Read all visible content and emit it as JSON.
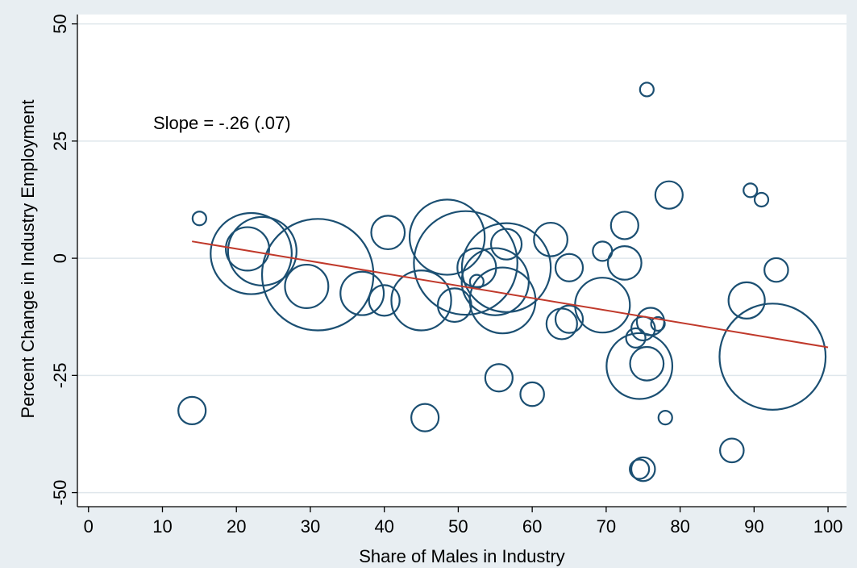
{
  "chart_data": {
    "type": "scatter",
    "xlabel": "Share of Males in Industry",
    "ylabel": "Percent Change in Industry Employment",
    "xlim": [
      -1.5,
      102.5
    ],
    "ylim": [
      -53,
      52
    ],
    "xticks": [
      0,
      10,
      20,
      30,
      40,
      50,
      60,
      70,
      80,
      90,
      100
    ],
    "yticks": [
      50,
      25,
      0,
      -25,
      -50
    ],
    "annotation": "Slope = -.26 (.07)",
    "grid": true,
    "marker_color": "#1b4f72",
    "fit_line_color": "#c0392b",
    "fit_line": {
      "x": [
        14,
        100
      ],
      "y": [
        3.6,
        -19.0
      ]
    },
    "points": [
      {
        "x": 15,
        "y": 8.5,
        "size": 1
      },
      {
        "x": 22,
        "y": 1,
        "size": 35
      },
      {
        "x": 21.5,
        "y": 2,
        "size": 10
      },
      {
        "x": 23.5,
        "y": 1.5,
        "size": 25
      },
      {
        "x": 31,
        "y": -3.5,
        "size": 66
      },
      {
        "x": 29.5,
        "y": -6,
        "size": 10
      },
      {
        "x": 37,
        "y": -7.5,
        "size": 10
      },
      {
        "x": 40.5,
        "y": 5.5,
        "size": 6
      },
      {
        "x": 40,
        "y": -9,
        "size": 5
      },
      {
        "x": 45,
        "y": -9,
        "size": 19
      },
      {
        "x": 48.5,
        "y": 4.5,
        "size": 30
      },
      {
        "x": 51,
        "y": -1,
        "size": 57
      },
      {
        "x": 49.5,
        "y": -10,
        "size": 6
      },
      {
        "x": 52.5,
        "y": -2,
        "size": 8
      },
      {
        "x": 52.5,
        "y": -5,
        "size": 1
      },
      {
        "x": 55,
        "y": -5,
        "size": 24
      },
      {
        "x": 56.5,
        "y": -2,
        "size": 42
      },
      {
        "x": 56.5,
        "y": 3,
        "size": 5
      },
      {
        "x": 56,
        "y": -9,
        "size": 23
      },
      {
        "x": 62.5,
        "y": 4,
        "size": 6
      },
      {
        "x": 65,
        "y": -2,
        "size": 4
      },
      {
        "x": 64,
        "y": -14,
        "size": 5
      },
      {
        "x": 65,
        "y": -13,
        "size": 4
      },
      {
        "x": 69.5,
        "y": 1.5,
        "size": 2
      },
      {
        "x": 69.5,
        "y": -10,
        "size": 16
      },
      {
        "x": 72.5,
        "y": 7,
        "size": 4
      },
      {
        "x": 72.5,
        "y": -1,
        "size": 6
      },
      {
        "x": 74,
        "y": -17,
        "size": 2
      },
      {
        "x": 74.5,
        "y": -23,
        "size": 23
      },
      {
        "x": 75.5,
        "y": -22.5,
        "size": 6
      },
      {
        "x": 75,
        "y": -15,
        "size": 3
      },
      {
        "x": 76,
        "y": -13.5,
        "size": 4
      },
      {
        "x": 77,
        "y": -14,
        "size": 1
      },
      {
        "x": 75.5,
        "y": 36,
        "size": 1
      },
      {
        "x": 78.5,
        "y": 13.5,
        "size": 4
      },
      {
        "x": 78,
        "y": -34,
        "size": 1
      },
      {
        "x": 89.5,
        "y": 14.5,
        "size": 1
      },
      {
        "x": 91,
        "y": 12.5,
        "size": 1
      },
      {
        "x": 89,
        "y": -9,
        "size": 7
      },
      {
        "x": 93,
        "y": -2.5,
        "size": 3
      },
      {
        "x": 92.5,
        "y": -21,
        "size": 60
      },
      {
        "x": 87,
        "y": -41,
        "size": 3
      },
      {
        "x": 75,
        "y": -45,
        "size": 3
      },
      {
        "x": 74.5,
        "y": -45,
        "size": 2
      },
      {
        "x": 55.5,
        "y": -25.5,
        "size": 4
      },
      {
        "x": 60,
        "y": -29,
        "size": 3
      },
      {
        "x": 45.5,
        "y": -34,
        "size": 4
      },
      {
        "x": 14,
        "y": -32.5,
        "size": 4
      }
    ]
  }
}
